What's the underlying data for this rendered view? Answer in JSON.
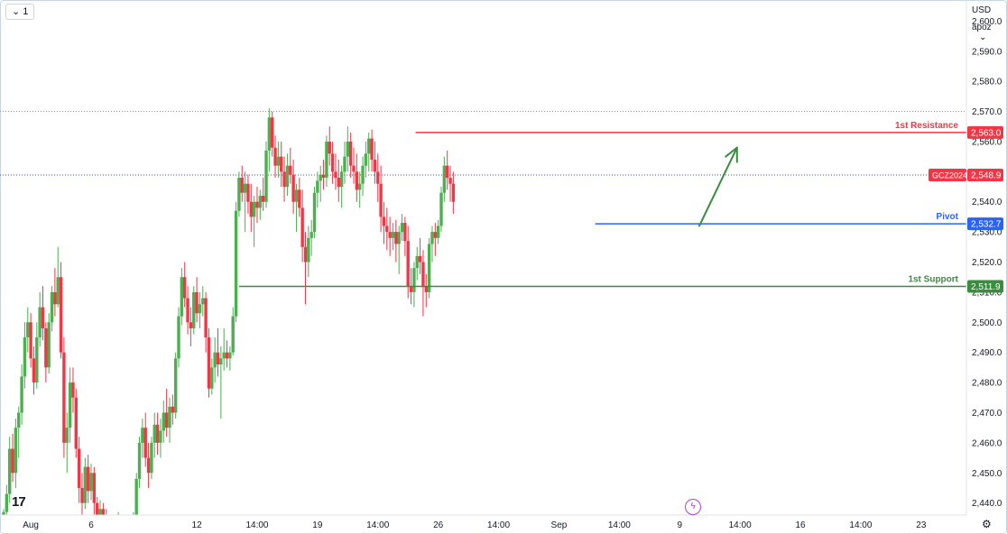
{
  "toolbar": {
    "interval_label": "1",
    "dropdown_glyph": "⌄"
  },
  "price_scale": {
    "currency": "USD",
    "mode": "apoz",
    "mode_glyph": "⌄"
  },
  "branding": {
    "logo_icon": "tradingview-logo-icon",
    "logo_text": "17"
  },
  "icons": {
    "bolt": "lightning-icon",
    "settings": "gear-icon"
  },
  "colors": {
    "up": "#4caf50",
    "down": "#f23645",
    "resistance": "#f23645",
    "pivot": "#2962ff",
    "support": "#388e3c",
    "arrow": "#388e3c"
  },
  "chart_data": {
    "type": "candlestick",
    "symbol": "GCZ2024",
    "last_price": 2548.9,
    "ylim": [
      2436,
      2607
    ],
    "y_ticks": [
      2440,
      2450,
      2460,
      2470,
      2480,
      2490,
      2500,
      2510,
      2520,
      2530,
      2540,
      2550,
      2560,
      2570,
      2580,
      2590,
      2600
    ],
    "x_ticks": [
      {
        "label": "Aug",
        "t": 0
      },
      {
        "label": "6",
        "t": 4
      },
      {
        "label": "12",
        "t": 11
      },
      {
        "label": "14:00",
        "t": 15
      },
      {
        "label": "19",
        "t": 19
      },
      {
        "label": "14:00",
        "t": 23
      },
      {
        "label": "26",
        "t": 27
      },
      {
        "label": "14:00",
        "t": 31
      },
      {
        "label": "Sep",
        "t": 35
      },
      {
        "label": "14:00",
        "t": 39
      },
      {
        "label": "9",
        "t": 43
      },
      {
        "label": "14:00",
        "t": 47
      },
      {
        "label": "16",
        "t": 51
      },
      {
        "label": "14:00",
        "t": 55
      },
      {
        "label": "23",
        "t": 59
      }
    ],
    "x_range": [
      -2.04,
      62.0
    ],
    "levels": [
      {
        "name": "1st Resistance",
        "value": 2563.0,
        "label": "2,563.0",
        "color": "#f23645",
        "t_start": 25.5
      },
      {
        "name": "Pivot",
        "value": 2532.7,
        "label": "2,532.7",
        "color": "#2962ff",
        "t_start": 37.4
      },
      {
        "name": "1st Support",
        "value": 2511.9,
        "label": "2,511.9",
        "color": "#388e3c",
        "t_start": 13.8
      }
    ],
    "dotted_lines": [
      2570.0,
      2548.9
    ],
    "arrow": {
      "from": [
        44.3,
        2532.0
      ],
      "to": [
        46.8,
        2558.0
      ]
    },
    "candles": [
      [
        -1.8,
        2436,
        2438,
        2434,
        2437
      ],
      [
        -1.6,
        2437,
        2446,
        2435,
        2443
      ],
      [
        -1.4,
        2443,
        2462,
        2440,
        2458
      ],
      [
        -1.2,
        2458,
        2463,
        2447,
        2450
      ],
      [
        -1.0,
        2450,
        2468,
        2445,
        2465
      ],
      [
        -0.8,
        2465,
        2472,
        2455,
        2470
      ],
      [
        -0.6,
        2470,
        2486,
        2466,
        2482
      ],
      [
        -0.4,
        2482,
        2500,
        2478,
        2495
      ],
      [
        -0.2,
        2495,
        2505,
        2490,
        2500
      ],
      [
        0.0,
        2500,
        2503,
        2485,
        2488
      ],
      [
        0.2,
        2488,
        2492,
        2476,
        2480
      ],
      [
        0.4,
        2480,
        2500,
        2478,
        2495
      ],
      [
        0.6,
        2495,
        2510,
        2492,
        2505
      ],
      [
        0.8,
        2505,
        2512,
        2494,
        2498
      ],
      [
        1.0,
        2498,
        2500,
        2480,
        2485
      ],
      [
        1.2,
        2485,
        2503,
        2483,
        2500
      ],
      [
        1.4,
        2500,
        2512,
        2497,
        2510
      ],
      [
        1.6,
        2510,
        2518,
        2502,
        2506
      ],
      [
        1.8,
        2506,
        2525,
        2505,
        2515
      ],
      [
        2.0,
        2515,
        2520,
        2488,
        2490
      ],
      [
        2.2,
        2490,
        2495,
        2455,
        2460
      ],
      [
        2.4,
        2460,
        2470,
        2450,
        2465
      ],
      [
        2.6,
        2465,
        2485,
        2460,
        2480
      ],
      [
        2.8,
        2480,
        2485,
        2470,
        2475
      ],
      [
        3.0,
        2475,
        2478,
        2455,
        2458
      ],
      [
        3.2,
        2458,
        2462,
        2440,
        2445
      ],
      [
        3.4,
        2445,
        2450,
        2436,
        2440
      ],
      [
        3.6,
        2440,
        2455,
        2438,
        2452
      ],
      [
        3.8,
        2452,
        2456,
        2440,
        2444
      ],
      [
        4.0,
        2444,
        2453,
        2441,
        2450
      ],
      [
        4.2,
        2450,
        2452,
        2436,
        2440
      ],
      [
        4.4,
        2440,
        2442,
        2434,
        2436
      ],
      [
        4.6,
        2436,
        2441,
        2434,
        2438
      ],
      [
        4.8,
        2438,
        2440,
        2433,
        2435
      ],
      [
        5.0,
        2435,
        2438,
        2432,
        2434
      ],
      [
        5.2,
        2434,
        2436,
        2430,
        2433
      ],
      [
        5.6,
        2433,
        2435,
        2430,
        2432
      ],
      [
        5.8,
        2432,
        2437,
        2430,
        2434
      ],
      [
        6.0,
        2434,
        2436,
        2431,
        2432
      ],
      [
        6.4,
        2432,
        2434,
        2430,
        2431
      ],
      [
        6.6,
        2431,
        2436,
        2430,
        2434
      ],
      [
        6.8,
        2434,
        2437,
        2432,
        2435
      ],
      [
        7.0,
        2435,
        2450,
        2433,
        2448
      ],
      [
        7.2,
        2448,
        2462,
        2445,
        2460
      ],
      [
        7.4,
        2460,
        2468,
        2455,
        2465
      ],
      [
        7.6,
        2465,
        2470,
        2452,
        2455
      ],
      [
        7.8,
        2455,
        2460,
        2445,
        2450
      ],
      [
        8.0,
        2450,
        2462,
        2448,
        2460
      ],
      [
        8.2,
        2460,
        2470,
        2455,
        2466
      ],
      [
        8.4,
        2466,
        2470,
        2456,
        2460
      ],
      [
        8.6,
        2460,
        2468,
        2455,
        2464
      ],
      [
        8.8,
        2464,
        2474,
        2460,
        2470
      ],
      [
        9.0,
        2470,
        2478,
        2462,
        2465
      ],
      [
        9.2,
        2465,
        2475,
        2460,
        2472
      ],
      [
        9.4,
        2472,
        2476,
        2466,
        2470
      ],
      [
        9.6,
        2470,
        2490,
        2468,
        2488
      ],
      [
        9.8,
        2488,
        2505,
        2485,
        2502
      ],
      [
        10.0,
        2502,
        2518,
        2499,
        2515
      ],
      [
        10.2,
        2515,
        2520,
        2505,
        2508
      ],
      [
        10.4,
        2508,
        2512,
        2496,
        2500
      ],
      [
        10.6,
        2500,
        2505,
        2492,
        2498
      ],
      [
        10.8,
        2498,
        2512,
        2496,
        2510
      ],
      [
        11.0,
        2510,
        2515,
        2500,
        2503
      ],
      [
        11.2,
        2503,
        2510,
        2498,
        2506
      ],
      [
        11.4,
        2506,
        2512,
        2502,
        2508
      ],
      [
        11.6,
        2508,
        2510,
        2490,
        2495
      ],
      [
        11.8,
        2495,
        2498,
        2475,
        2478
      ],
      [
        12.0,
        2478,
        2488,
        2476,
        2485
      ],
      [
        12.2,
        2485,
        2495,
        2480,
        2490
      ],
      [
        12.4,
        2490,
        2498,
        2482,
        2486
      ],
      [
        12.6,
        2486,
        2492,
        2468,
        2488
      ],
      [
        12.8,
        2488,
        2498,
        2484,
        2490
      ],
      [
        13.0,
        2490,
        2494,
        2485,
        2488
      ],
      [
        13.2,
        2488,
        2492,
        2484,
        2490
      ],
      [
        13.4,
        2490,
        2505,
        2489,
        2502
      ],
      [
        13.6,
        2502,
        2540,
        2500,
        2537
      ],
      [
        13.8,
        2537,
        2550,
        2535,
        2548
      ],
      [
        14.0,
        2548,
        2552,
        2540,
        2543
      ],
      [
        14.2,
        2543,
        2550,
        2530,
        2546
      ],
      [
        14.4,
        2546,
        2549,
        2536,
        2540
      ],
      [
        14.6,
        2540,
        2546,
        2530,
        2535
      ],
      [
        14.8,
        2535,
        2542,
        2525,
        2540
      ],
      [
        15.0,
        2540,
        2545,
        2533,
        2538
      ],
      [
        15.2,
        2538,
        2544,
        2534,
        2542
      ],
      [
        15.4,
        2542,
        2548,
        2537,
        2540
      ],
      [
        15.6,
        2540,
        2560,
        2538,
        2557
      ],
      [
        15.8,
        2557,
        2571,
        2550,
        2568
      ],
      [
        16.0,
        2568,
        2570,
        2555,
        2558
      ],
      [
        16.2,
        2558,
        2562,
        2548,
        2552
      ],
      [
        16.4,
        2552,
        2560,
        2548,
        2555
      ],
      [
        16.6,
        2555,
        2560,
        2545,
        2550
      ],
      [
        16.8,
        2550,
        2555,
        2540,
        2545
      ],
      [
        17.0,
        2545,
        2556,
        2542,
        2552
      ],
      [
        17.2,
        2552,
        2558,
        2546,
        2549
      ],
      [
        17.4,
        2549,
        2554,
        2536,
        2540
      ],
      [
        17.6,
        2540,
        2546,
        2530,
        2544
      ],
      [
        17.8,
        2544,
        2548,
        2535,
        2538
      ],
      [
        18.0,
        2538,
        2544,
        2520,
        2525
      ],
      [
        18.2,
        2525,
        2530,
        2506,
        2520
      ],
      [
        18.4,
        2520,
        2532,
        2515,
        2528
      ],
      [
        18.6,
        2528,
        2534,
        2522,
        2530
      ],
      [
        18.8,
        2530,
        2545,
        2528,
        2543
      ],
      [
        19.0,
        2543,
        2550,
        2538,
        2547
      ],
      [
        19.2,
        2547,
        2552,
        2540,
        2549
      ],
      [
        19.4,
        2549,
        2554,
        2544,
        2548
      ],
      [
        19.6,
        2548,
        2562,
        2545,
        2560
      ],
      [
        19.8,
        2560,
        2565,
        2552,
        2556
      ],
      [
        20.0,
        2556,
        2560,
        2546,
        2550
      ],
      [
        20.2,
        2550,
        2556,
        2544,
        2548
      ],
      [
        20.4,
        2548,
        2554,
        2540,
        2545
      ],
      [
        20.6,
        2545,
        2552,
        2538,
        2550
      ],
      [
        20.8,
        2550,
        2560,
        2546,
        2555
      ],
      [
        21.0,
        2555,
        2565,
        2550,
        2560
      ],
      [
        21.2,
        2560,
        2563,
        2548,
        2552
      ],
      [
        21.4,
        2552,
        2558,
        2546,
        2550
      ],
      [
        21.6,
        2550,
        2556,
        2540,
        2544
      ],
      [
        21.8,
        2544,
        2550,
        2538,
        2546
      ],
      [
        22.0,
        2546,
        2555,
        2542,
        2552
      ],
      [
        22.2,
        2552,
        2560,
        2548,
        2556
      ],
      [
        22.4,
        2556,
        2563,
        2550,
        2561
      ],
      [
        22.6,
        2561,
        2564,
        2550,
        2554
      ],
      [
        22.8,
        2554,
        2560,
        2546,
        2550
      ],
      [
        23.0,
        2550,
        2556,
        2540,
        2546
      ],
      [
        23.2,
        2546,
        2552,
        2530,
        2535
      ],
      [
        23.4,
        2535,
        2540,
        2526,
        2532
      ],
      [
        23.6,
        2532,
        2538,
        2524,
        2530
      ],
      [
        23.8,
        2530,
        2535,
        2522,
        2528
      ],
      [
        24.0,
        2528,
        2533,
        2524,
        2530
      ],
      [
        24.2,
        2530,
        2534,
        2520,
        2526
      ],
      [
        24.4,
        2526,
        2532,
        2516,
        2530
      ],
      [
        24.6,
        2530,
        2536,
        2527,
        2533
      ],
      [
        24.8,
        2533,
        2535,
        2522,
        2527
      ],
      [
        25.0,
        2527,
        2532,
        2508,
        2512
      ],
      [
        25.2,
        2512,
        2518,
        2506,
        2510
      ],
      [
        25.4,
        2510,
        2520,
        2505,
        2518
      ],
      [
        25.6,
        2518,
        2525,
        2514,
        2522
      ],
      [
        25.8,
        2522,
        2528,
        2516,
        2520
      ],
      [
        26.0,
        2520,
        2524,
        2502,
        2512
      ],
      [
        26.2,
        2512,
        2516,
        2505,
        2510
      ],
      [
        26.4,
        2510,
        2528,
        2508,
        2526
      ],
      [
        26.6,
        2526,
        2532,
        2520,
        2530
      ],
      [
        26.8,
        2530,
        2533,
        2522,
        2528
      ],
      [
        27.0,
        2528,
        2534,
        2526,
        2532
      ],
      [
        27.2,
        2532,
        2545,
        2530,
        2543
      ],
      [
        27.4,
        2543,
        2555,
        2540,
        2552
      ],
      [
        27.6,
        2552,
        2557,
        2544,
        2548
      ],
      [
        27.8,
        2548,
        2552,
        2540,
        2546
      ],
      [
        28.0,
        2546,
        2550,
        2536,
        2540
      ]
    ]
  }
}
